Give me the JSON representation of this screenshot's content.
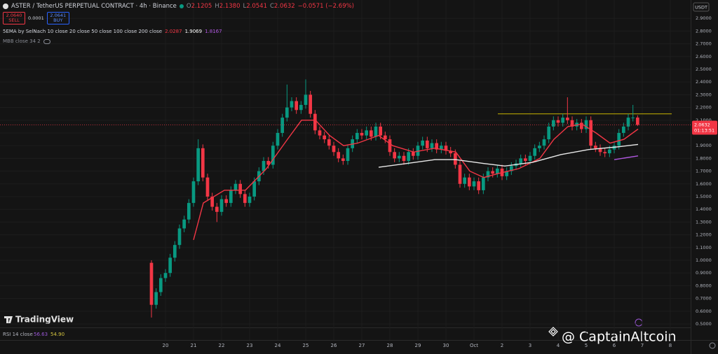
{
  "header": {
    "title": "ASTER / TetherUS PERPETUAL CONTRACT · 4h · Binance",
    "ohlc": [
      {
        "label": "O",
        "value": "2.1205"
      },
      {
        "label": "H",
        "value": "2.1380"
      },
      {
        "label": "L",
        "value": "2.0541"
      },
      {
        "label": "C",
        "value": "2.0632"
      }
    ],
    "change": "−0.0571 (−2.69%)",
    "sell_price": "2.0640",
    "sell_label": "SELL",
    "spread": "0.0001",
    "buy_price": "2.0641",
    "buy_label": "BUY",
    "indicator": "5EMA by SelNach 10 close 20 close 50 close 100 close 200 close",
    "indicator_values": [
      {
        "value": 2.0287,
        "color": "#f23645"
      },
      {
        "value": 1.9069,
        "color": "#ffffff"
      },
      {
        "value": 1.8167,
        "color": "#b058e0"
      }
    ],
    "indicator2": "MBB close 34 2",
    "currency": "USDT",
    "logo": "TradingView",
    "countdown": "01:13:51",
    "rsi_label": "RSI 14 close",
    "rsi_values": [
      {
        "value": 56.63,
        "color": "#9c58d8"
      },
      {
        "value": 54.9,
        "label": "54.90",
        "color": "#d6c640"
      }
    ],
    "watermark": "@ CaptainAltcoin"
  },
  "chart_data": {
    "type": "candlestick",
    "up_color": "#089981",
    "down_color": "#f23645",
    "xlim": [
      14.1,
      38.725
    ],
    "ylim": [
      0.4725,
      2.989
    ],
    "xticks": [
      20,
      21,
      22,
      23,
      24,
      25,
      26,
      27,
      28,
      29,
      30,
      {
        "value": 31,
        "label": "Oct"
      },
      {
        "value": 32,
        "label": "2"
      },
      {
        "value": 33,
        "label": "3"
      },
      {
        "value": 34,
        "label": "4"
      },
      {
        "value": 35,
        "label": "5"
      },
      {
        "value": 36,
        "label": "6"
      },
      {
        "value": 37,
        "label": "7"
      },
      {
        "value": 38,
        "label": "8"
      }
    ],
    "yticks": [
      {
        "value": 0.5,
        "label": "0.5000"
      },
      {
        "value": 0.6,
        "label": "0.6000"
      },
      {
        "value": 0.7,
        "label": "0.7000"
      },
      {
        "value": 0.8,
        "label": "0.8000"
      },
      {
        "value": 0.9,
        "label": "0.9000"
      },
      {
        "value": 1.0,
        "label": "1.0000"
      },
      {
        "value": 1.1,
        "label": "1.1000"
      },
      {
        "value": 1.2,
        "label": "1.2000"
      },
      {
        "value": 1.3,
        "label": "1.3000"
      },
      {
        "value": 1.4,
        "label": "1.4000"
      },
      {
        "value": 1.5,
        "label": "1.5000"
      },
      {
        "value": 1.6,
        "label": "1.6000"
      },
      {
        "value": 1.7,
        "label": "1.7000"
      },
      {
        "value": 1.8,
        "label": "1.8000"
      },
      {
        "value": 1.9,
        "label": "1.9000"
      },
      {
        "value": 2.0,
        "label": "2.0000"
      },
      {
        "value": 2.1,
        "label": "2.1000"
      },
      {
        "value": 2.2,
        "label": "2.2000"
      },
      {
        "value": 2.3,
        "label": "2.3000"
      },
      {
        "value": 2.4,
        "label": "2.4000"
      },
      {
        "value": 2.5,
        "label": "2.5000"
      },
      {
        "value": 2.6,
        "label": "2.6000"
      },
      {
        "value": 2.7,
        "label": "2.7000"
      },
      {
        "value": 2.8,
        "label": "2.8000"
      },
      {
        "value": 2.9,
        "label": "2.9000"
      }
    ],
    "grid": true,
    "x": [
      19.5,
      19.667,
      19.833,
      20,
      20.167,
      20.333,
      20.5,
      20.667,
      20.833,
      21,
      21.167,
      21.333,
      21.5,
      21.667,
      21.833,
      22,
      22.167,
      22.333,
      22.5,
      22.667,
      22.833,
      23,
      23.167,
      23.333,
      23.5,
      23.667,
      23.833,
      24,
      24.167,
      24.333,
      24.5,
      24.667,
      24.833,
      25,
      25.167,
      25.333,
      25.5,
      25.667,
      25.833,
      26,
      26.167,
      26.333,
      26.5,
      26.667,
      26.833,
      27,
      27.167,
      27.333,
      27.5,
      27.667,
      27.833,
      28,
      28.167,
      28.333,
      28.5,
      28.667,
      28.833,
      29,
      29.167,
      29.333,
      29.5,
      29.667,
      29.833,
      30,
      30.167,
      30.333,
      30.5,
      30.667,
      30.833,
      31,
      31.167,
      31.333,
      31.5,
      31.667,
      31.833,
      32,
      32.167,
      32.333,
      32.5,
      32.667,
      32.833,
      33,
      33.167,
      33.333,
      33.5,
      33.667,
      33.833,
      34,
      34.167,
      34.333,
      34.5,
      34.667,
      34.833,
      35,
      35.167,
      35.333,
      35.5,
      35.667,
      35.833,
      36,
      36.167,
      36.333,
      36.5,
      36.667,
      36.833
    ],
    "open": [
      0.98,
      0.65,
      0.75,
      0.86,
      0.9,
      1.02,
      1.12,
      1.25,
      1.32,
      1.45,
      1.62,
      1.88,
      1.65,
      1.5,
      1.42,
      1.38,
      1.48,
      1.45,
      1.55,
      1.6,
      1.52,
      1.45,
      1.5,
      1.62,
      1.7,
      1.78,
      1.75,
      1.9,
      2.0,
      2.12,
      2.2,
      2.25,
      2.18,
      2.22,
      2.3,
      2.15,
      2.02,
      1.98,
      1.95,
      1.9,
      1.85,
      1.8,
      1.78,
      1.88,
      1.95,
      2.0,
      1.98,
      2.02,
      1.97,
      2.05,
      1.98,
      1.95,
      1.85,
      1.8,
      1.82,
      1.78,
      1.85,
      1.82,
      1.9,
      1.94,
      1.88,
      1.92,
      1.87,
      1.9,
      1.86,
      1.84,
      1.75,
      1.6,
      1.65,
      1.58,
      1.62,
      1.55,
      1.65,
      1.7,
      1.68,
      1.72,
      1.66,
      1.7,
      1.74,
      1.76,
      1.8,
      1.78,
      1.82,
      1.88,
      1.9,
      1.95,
      2.05,
      2.1,
      2.08,
      2.12,
      2.1,
      2.05,
      2.08,
      2.03,
      2.1,
      1.9,
      1.88,
      1.85,
      1.84,
      1.87,
      1.9,
      2.0,
      2.05,
      2.12,
      2.1205
    ],
    "high": [
      1.0,
      0.78,
      0.89,
      0.93,
      1.05,
      1.15,
      1.28,
      1.35,
      1.48,
      1.65,
      1.95,
      1.91,
      1.68,
      1.53,
      1.45,
      1.51,
      1.51,
      1.58,
      1.63,
      1.63,
      1.55,
      1.53,
      1.65,
      1.73,
      1.81,
      1.81,
      1.93,
      2.03,
      2.15,
      2.38,
      2.28,
      2.28,
      2.25,
      2.42,
      2.33,
      2.18,
      2.05,
      2.01,
      1.98,
      1.93,
      1.88,
      1.83,
      1.91,
      1.98,
      2.03,
      2.03,
      2.05,
      2.05,
      2.08,
      2.08,
      2.01,
      1.98,
      1.88,
      1.85,
      1.85,
      1.88,
      1.88,
      1.93,
      1.97,
      1.97,
      1.95,
      1.95,
      1.93,
      1.93,
      1.89,
      1.87,
      1.78,
      1.68,
      1.68,
      1.65,
      1.65,
      1.68,
      1.73,
      1.73,
      1.75,
      1.75,
      1.73,
      1.77,
      1.79,
      1.83,
      1.83,
      1.85,
      1.91,
      1.93,
      1.98,
      2.08,
      2.13,
      2.13,
      2.15,
      2.28,
      2.13,
      2.11,
      2.11,
      2.13,
      2.13,
      1.93,
      1.91,
      1.88,
      1.9,
      1.93,
      2.03,
      2.08,
      2.15,
      2.22,
      2.138
    ],
    "low": [
      0.55,
      0.62,
      0.72,
      0.83,
      0.87,
      0.99,
      1.09,
      1.22,
      1.29,
      1.42,
      1.59,
      1.62,
      1.47,
      1.39,
      1.3,
      1.35,
      1.42,
      1.42,
      1.52,
      1.49,
      1.42,
      1.42,
      1.47,
      1.59,
      1.67,
      1.72,
      1.72,
      1.87,
      1.97,
      2.09,
      2.17,
      2.15,
      2.15,
      2.19,
      2.12,
      1.99,
      1.95,
      1.92,
      1.87,
      1.82,
      1.77,
      1.75,
      1.75,
      1.85,
      1.92,
      1.95,
      1.95,
      1.94,
      1.94,
      1.95,
      1.92,
      1.82,
      1.77,
      1.77,
      1.75,
      1.75,
      1.79,
      1.79,
      1.87,
      1.85,
      1.85,
      1.84,
      1.84,
      1.83,
      1.81,
      1.72,
      1.57,
      1.57,
      1.55,
      1.55,
      1.52,
      1.52,
      1.62,
      1.65,
      1.65,
      1.63,
      1.63,
      1.67,
      1.71,
      1.73,
      1.75,
      1.75,
      1.79,
      1.85,
      1.87,
      1.92,
      2.02,
      2.05,
      2.05,
      2.07,
      2.02,
      2.02,
      2.0,
      2.0,
      1.87,
      1.85,
      1.82,
      1.81,
      1.81,
      1.84,
      1.87,
      1.97,
      2.02,
      2.09,
      2.0541
    ],
    "close": [
      0.65,
      0.75,
      0.86,
      0.9,
      1.02,
      1.12,
      1.25,
      1.32,
      1.45,
      1.62,
      1.88,
      1.65,
      1.5,
      1.42,
      1.38,
      1.48,
      1.45,
      1.55,
      1.6,
      1.52,
      1.45,
      1.5,
      1.62,
      1.7,
      1.78,
      1.75,
      1.9,
      2.0,
      2.12,
      2.2,
      2.25,
      2.18,
      2.22,
      2.3,
      2.15,
      2.02,
      1.98,
      1.95,
      1.9,
      1.85,
      1.8,
      1.78,
      1.88,
      1.95,
      2.0,
      1.98,
      2.02,
      1.97,
      2.05,
      1.98,
      1.95,
      1.85,
      1.8,
      1.82,
      1.78,
      1.85,
      1.82,
      1.9,
      1.94,
      1.88,
      1.92,
      1.87,
      1.9,
      1.86,
      1.84,
      1.75,
      1.6,
      1.65,
      1.58,
      1.62,
      1.55,
      1.65,
      1.7,
      1.68,
      1.72,
      1.66,
      1.7,
      1.74,
      1.76,
      1.8,
      1.78,
      1.82,
      1.88,
      1.9,
      1.95,
      2.05,
      2.1,
      2.08,
      2.12,
      2.1,
      2.05,
      2.08,
      2.03,
      2.1,
      1.9,
      1.88,
      1.85,
      1.84,
      1.87,
      1.9,
      2.0,
      2.05,
      2.12,
      2.1205,
      2.0632
    ],
    "lines": [
      {
        "color": "#f23645",
        "x": [
          21.0,
          21.35,
          22.1,
          22.85,
          23.6,
          24.35,
          24.85,
          25.35,
          25.85,
          26.35,
          26.85,
          27.6,
          28.1,
          28.85,
          29.6,
          30.35,
          30.85,
          31.35,
          31.85,
          32.6,
          33.35,
          33.85,
          34.35,
          34.85,
          35.35,
          35.85,
          36.35,
          36.85
        ],
        "values": [
          1.16,
          1.45,
          1.55,
          1.55,
          1.72,
          1.95,
          2.1,
          2.1,
          1.98,
          1.9,
          1.92,
          1.98,
          1.9,
          1.85,
          1.88,
          1.85,
          1.7,
          1.65,
          1.68,
          1.72,
          1.8,
          1.95,
          2.05,
          2.07,
          2.0,
          1.92,
          1.95,
          2.03
        ]
      },
      {
        "color": "#e8e8e8",
        "x": [
          27.6,
          28.6,
          29.6,
          30.35,
          31.35,
          32.1,
          33.1,
          34.1,
          35.1,
          36.1,
          36.85
        ],
        "values": [
          1.73,
          1.76,
          1.79,
          1.79,
          1.76,
          1.74,
          1.77,
          1.83,
          1.87,
          1.89,
          1.91
        ]
      },
      {
        "color": "#b058e0",
        "x": [
          36.0,
          36.85
        ],
        "values": [
          1.79,
          1.82
        ]
      }
    ],
    "levels": [
      {
        "value": 2.15,
        "x": [
          31.85,
          38.05
        ],
        "color": "#c8b400"
      }
    ]
  }
}
